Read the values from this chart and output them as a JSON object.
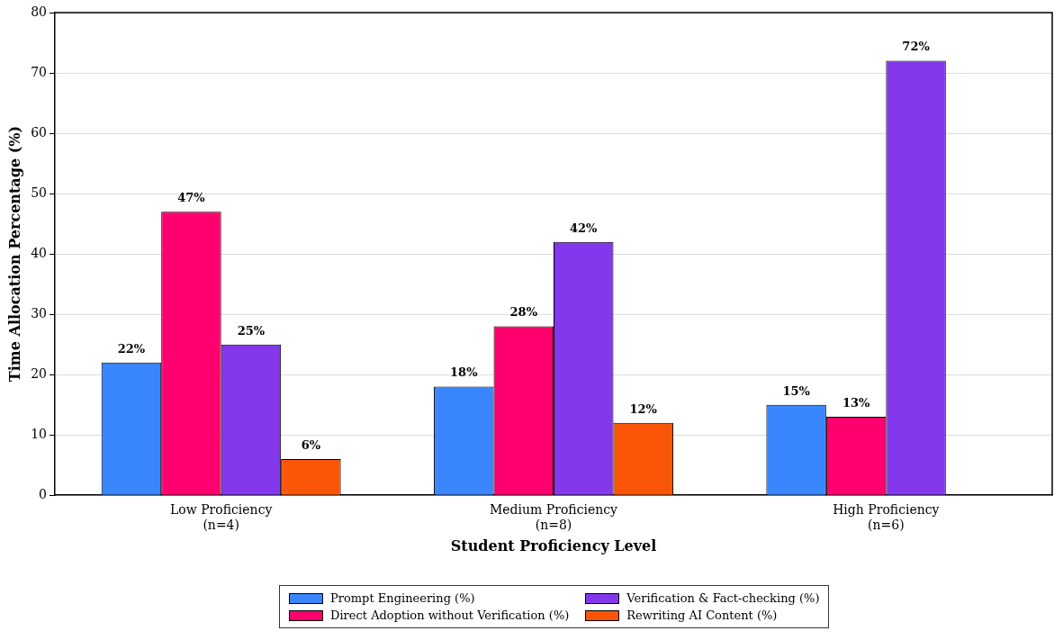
{
  "chart_data": {
    "type": "bar",
    "xlabel": "Student Proficiency Level",
    "ylabel": "Time Allocation Percentage (%)",
    "categories": [
      "Low Proficiency\n(n=4)",
      "Medium Proficiency\n(n=8)",
      "High Proficiency\n(n=6)"
    ],
    "series": [
      {
        "name": "Prompt Engineering (%)",
        "color": "#3a86ff",
        "values": [
          22,
          18,
          15
        ],
        "value_labels": [
          "22%",
          "18%",
          "15%"
        ]
      },
      {
        "name": "Direct Adoption without Verification (%)",
        "color": "#ff006e",
        "values": [
          47,
          28,
          13
        ],
        "value_labels": [
          "47%",
          "28%",
          "13%"
        ]
      },
      {
        "name": "Verification & Fact-checking (%)",
        "color": "#8338ec",
        "values": [
          25,
          42,
          72
        ],
        "value_labels": [
          "25%",
          "42%",
          "72%"
        ]
      },
      {
        "name": "Rewriting AI Content (%)",
        "color": "#fb5607",
        "values": [
          6,
          12,
          null
        ],
        "value_labels": [
          "6%",
          "12%",
          null
        ]
      }
    ],
    "ylim": [
      0,
      80
    ],
    "yticks": [
      0,
      10,
      20,
      30,
      40,
      50,
      60,
      70,
      80
    ],
    "grid": "y",
    "legend": "bottom"
  }
}
